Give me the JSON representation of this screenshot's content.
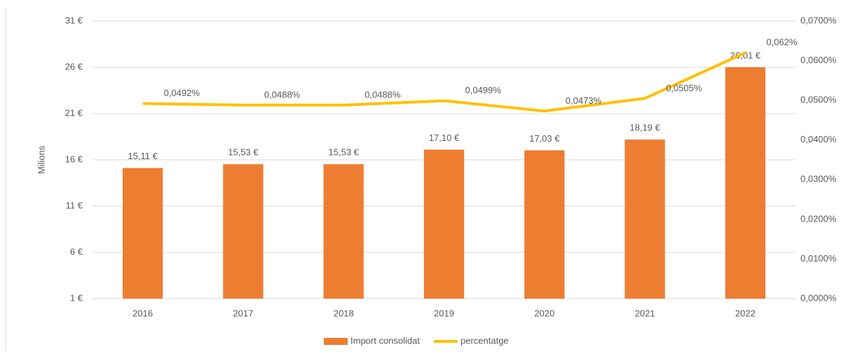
{
  "chart_data": {
    "type": "bar_line",
    "y_axis_label": "Milions",
    "categories": [
      "2016",
      "2017",
      "2018",
      "2019",
      "2020",
      "2021",
      "2022"
    ],
    "series": [
      {
        "name": "Import consolidat",
        "type": "bar",
        "color": "#ed7d31",
        "values": [
          15.11,
          15.53,
          15.53,
          17.1,
          17.03,
          18.19,
          26.01
        ],
        "value_labels": [
          "15,11 €",
          "15,53 €",
          "15,53 €",
          "17,10 €",
          "17,03 €",
          "18,19 €",
          "26,01 €"
        ]
      },
      {
        "name": "percentatge",
        "type": "line",
        "axis": "y2",
        "color": "#ffc000",
        "values": [
          0.0492,
          0.0488,
          0.0488,
          0.0499,
          0.0473,
          0.0505,
          0.062
        ],
        "value_labels": [
          "0,0492%",
          "0,0488%",
          "0,0488%",
          "0,0499%",
          "0,0473%",
          "0,0505%",
          "0,062%"
        ]
      }
    ],
    "ylim": [
      1,
      31
    ],
    "yticks": [
      {
        "value": 1,
        "label": "1 €"
      },
      {
        "value": 6,
        "label": "6 €"
      },
      {
        "value": 11,
        "label": "11 €"
      },
      {
        "value": 16,
        "label": "16 €"
      },
      {
        "value": 21,
        "label": "21 €"
      },
      {
        "value": 26,
        "label": "26 €"
      },
      {
        "value": 31,
        "label": "31 €"
      }
    ],
    "y2lim": [
      0,
      0.07
    ],
    "y2ticks": [
      {
        "value": 0,
        "label": "0,0000%"
      },
      {
        "value": 0.01,
        "label": "0,0100%"
      },
      {
        "value": 0.02,
        "label": "0,0200%"
      },
      {
        "value": 0.03,
        "label": "0,0300%"
      },
      {
        "value": 0.04,
        "label": "0,0400%"
      },
      {
        "value": 0.05,
        "label": "0,0500%"
      },
      {
        "value": 0.06,
        "label": "0,0600%"
      },
      {
        "value": 0.07,
        "label": "0,0700%"
      }
    ],
    "grid": true,
    "legend": "bottom"
  }
}
